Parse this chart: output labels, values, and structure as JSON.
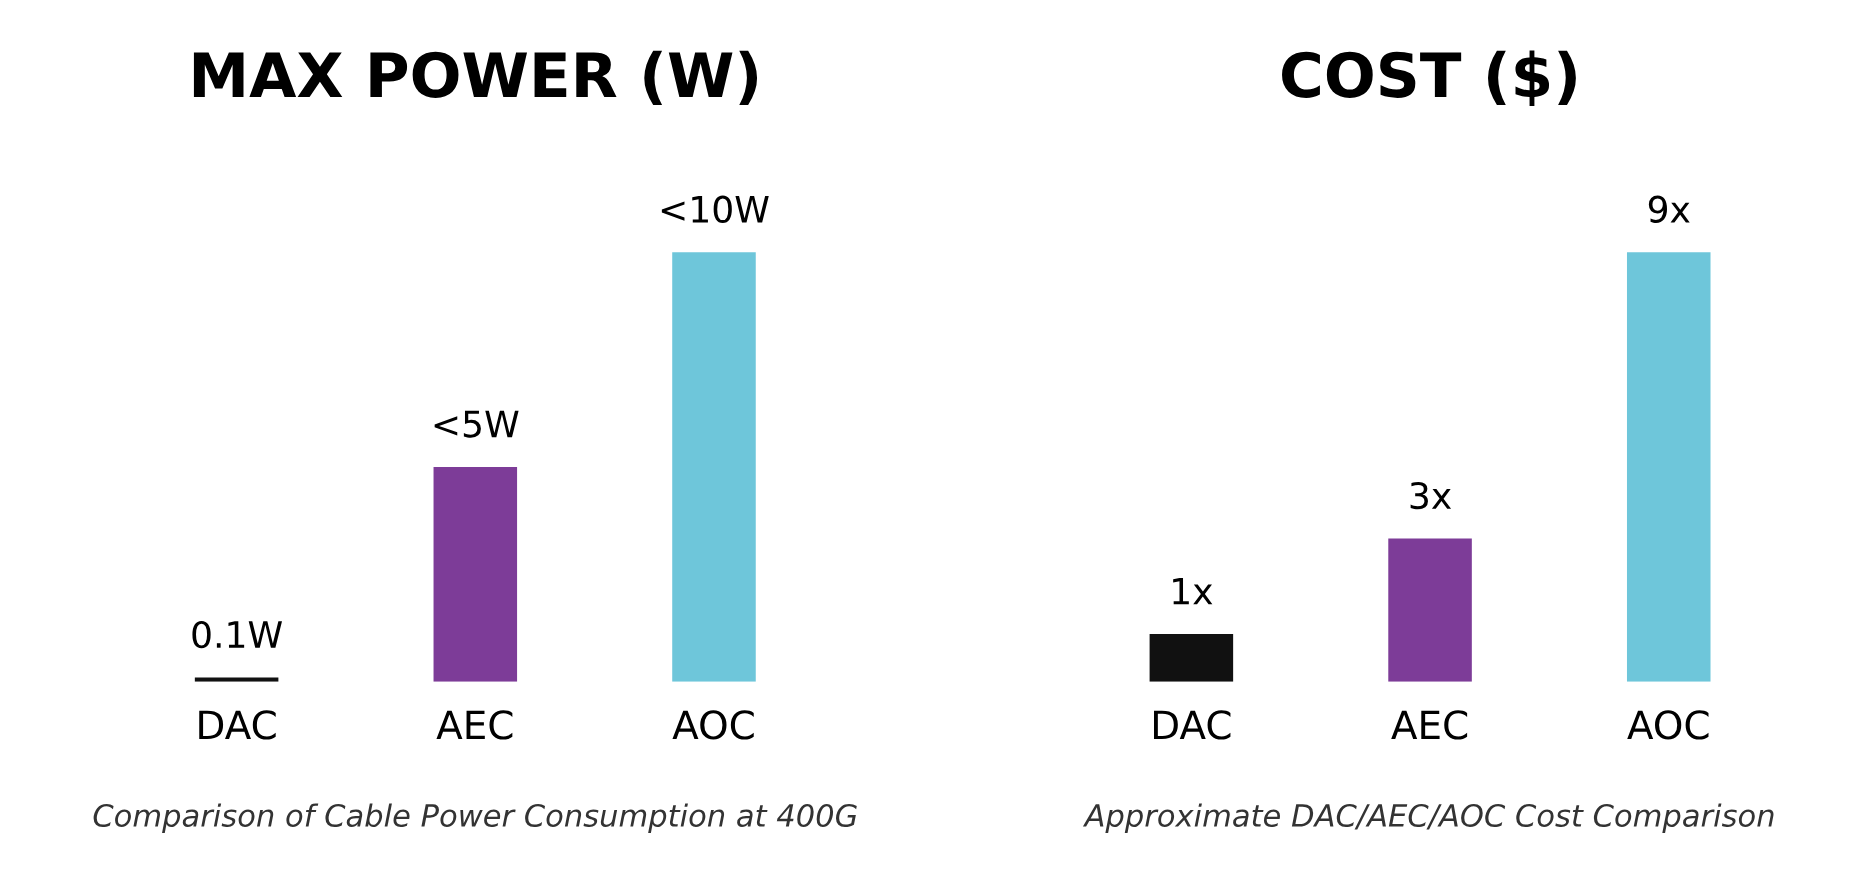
{
  "chart_data": [
    {
      "type": "bar",
      "title": "MAX POWER (W)",
      "categories": [
        "DAC",
        "AEC",
        "AOC"
      ],
      "values": [
        0.1,
        5,
        10
      ],
      "colors": [
        "#111111",
        "#7d3c98",
        "#6ec6da"
      ],
      "value_labels": [
        "0.1W",
        "<5W",
        "<10W"
      ],
      "annotations": [
        "Comparison of Cable Power Consumption at 400G"
      ]
    },
    {
      "type": "bar",
      "title": "COST ($)",
      "categories": [
        "DAC",
        "AEC",
        "AOC"
      ],
      "values": [
        1,
        3,
        9
      ],
      "colors": [
        "#111111",
        "#7d3c98",
        "#6ec6da"
      ],
      "value_labels": [
        "1x",
        "3x",
        "9x"
      ],
      "annotations": [
        "Approximate DAC/AEC/AOC Cost Comparison"
      ]
    }
  ]
}
